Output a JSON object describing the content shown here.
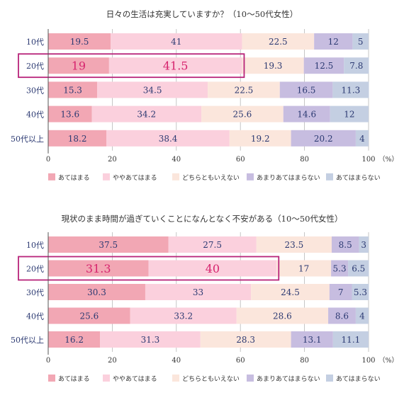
{
  "colors": {
    "c1": "#f2a7b4",
    "c2": "#fbd0dd",
    "c3": "#fbe6dc",
    "c4": "#c7bde0",
    "c5": "#c4cfe2",
    "grid": "#b8b8b8",
    "axis": "#555555",
    "label": "#2c3a72",
    "highlight_text": "#d6246e",
    "highlight_box": "#b8247a"
  },
  "chart_data": [
    {
      "type": "bar",
      "orientation": "horizontal",
      "stacked": true,
      "title": "日々の生活は充実していますか？（10～50代女性）",
      "categories": [
        "10代",
        "20代",
        "30代",
        "40代",
        "50代以上"
      ],
      "xlim": [
        0,
        100
      ],
      "xticks": [
        "0",
        "20",
        "40",
        "60",
        "80",
        "100"
      ],
      "x_unit": "（%）",
      "grid": true,
      "legend_position": "bottom",
      "highlight_category": "20代",
      "highlight_series_count": 2,
      "series": [
        {
          "name": "あてはまる",
          "values": [
            19.5,
            19,
            15.3,
            13.6,
            18.2
          ]
        },
        {
          "name": "ややあてはまる",
          "values": [
            41,
            41.5,
            34.5,
            34.2,
            38.4
          ]
        },
        {
          "name": "どちらともいえない",
          "values": [
            22.5,
            19.3,
            22.5,
            25.6,
            19.2
          ]
        },
        {
          "name": "あまりあてはまらない",
          "values": [
            12,
            12.5,
            16.5,
            14.6,
            20.2
          ]
        },
        {
          "name": "あてはまらない",
          "values": [
            5,
            7.8,
            11.3,
            12,
            4
          ]
        }
      ]
    },
    {
      "type": "bar",
      "orientation": "horizontal",
      "stacked": true,
      "title": "現状のまま時間が過ぎていくことになんとなく不安がある（10～50代女性）",
      "categories": [
        "10代",
        "20代",
        "30代",
        "40代",
        "50代以上"
      ],
      "xlim": [
        0,
        100
      ],
      "xticks": [
        "0",
        "20",
        "40",
        "60",
        "80",
        "100"
      ],
      "x_unit": "（%）",
      "grid": true,
      "legend_position": "bottom",
      "highlight_category": "20代",
      "highlight_series_count": 2,
      "series": [
        {
          "name": "あてはまる",
          "values": [
            37.5,
            31.3,
            30.3,
            25.6,
            16.2
          ]
        },
        {
          "name": "ややあてはまる",
          "values": [
            27.5,
            40,
            33,
            33.2,
            31.3
          ]
        },
        {
          "name": "どちらともいえない",
          "values": [
            23.5,
            17,
            24.5,
            28.6,
            28.3
          ]
        },
        {
          "name": "あまりあてはまらない",
          "values": [
            8.5,
            5.3,
            7,
            8.6,
            13.1
          ]
        },
        {
          "name": "あてはまらない",
          "values": [
            3,
            6.5,
            5.3,
            4,
            11.1
          ]
        }
      ]
    }
  ]
}
